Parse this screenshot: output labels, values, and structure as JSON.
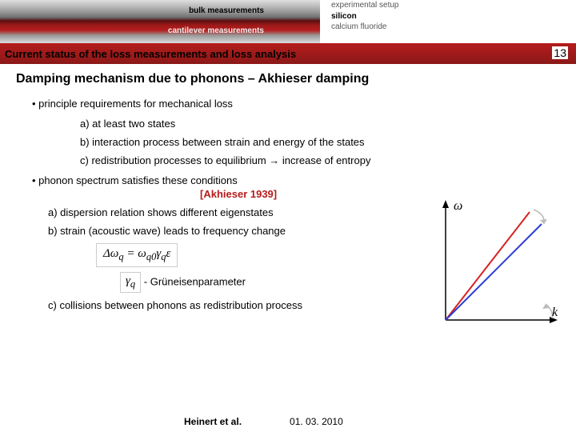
{
  "header": {
    "left": {
      "bulk": "bulk measurements",
      "cantilever": "cantilever measurements"
    },
    "right": {
      "r1": "experimental setup",
      "r2": "silicon",
      "r3": "calcium fluoride"
    }
  },
  "titlebar": {
    "title": "Current status of the loss measurements and loss analysis",
    "page": "13"
  },
  "section": {
    "title": "Damping mechanism due to phonons – Akhieser damping"
  },
  "b1": "• principle requirements for mechanical loss",
  "b1a": "a) at least two states",
  "b1b": "b) interaction process between strain and energy of the states",
  "b1c": "c) redistribution processes to equilibrium → increase of entropy",
  "b2": "• phonon spectrum satisfies these conditions",
  "cite": "[Akhieser 1939]",
  "b2a": "a) dispersion relation shows different eigenstates",
  "b2b": "b) strain (acoustic wave) leads to frequency change",
  "formula": "Δω",
  "formula_sub1": "q",
  "formula_eq": " = ω",
  "formula_sub2": "q0",
  "formula_g": "γ",
  "formula_sub3": "q",
  "formula_e": "ε",
  "param_sym": "γ",
  "param_subq": "q",
  "param_txt": " - Grüneisenparameter",
  "b2c": "c) collisions between phonons as redistribution process",
  "footer": {
    "author": "Heinert et al.",
    "date": "01. 03. 2010"
  },
  "chart": {
    "axis_y": "ω",
    "axis_x": "k",
    "line_colors": [
      "#d62222",
      "#2a3bd6"
    ],
    "axis_color": "#000000",
    "arrow_gray": "#bbbbbb"
  }
}
